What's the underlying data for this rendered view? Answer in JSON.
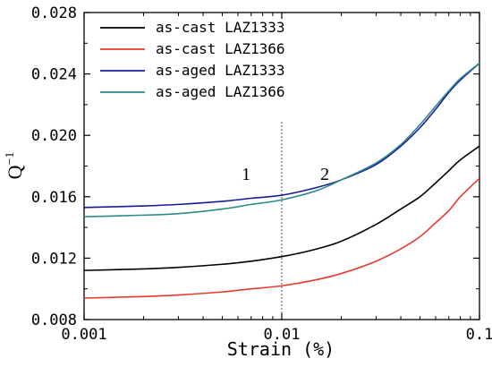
{
  "chart_data": {
    "type": "line",
    "xscale": "log",
    "xlabel": "Strain (%)",
    "ylabel": {
      "base": "Q",
      "sup": "−1"
    },
    "xlim": [
      0.001,
      0.1
    ],
    "ylim": [
      0.008,
      0.028
    ],
    "xticks": [
      {
        "value": 0.001,
        "label": "0.001"
      },
      {
        "value": 0.01,
        "label": "0.01"
      },
      {
        "value": 0.1,
        "label": "0.1"
      }
    ],
    "yticks": [
      {
        "value": 0.008,
        "label": "0.008"
      },
      {
        "value": 0.012,
        "label": "0.012"
      },
      {
        "value": 0.016,
        "label": "0.016"
      },
      {
        "value": 0.02,
        "label": "0.020"
      },
      {
        "value": 0.024,
        "label": "0.024"
      },
      {
        "value": 0.028,
        "label": "0.028"
      }
    ],
    "divider": {
      "x": 0.01,
      "style": "dotted"
    },
    "regions": [
      {
        "label": "1",
        "x": 0.0066,
        "y": 0.0175
      },
      {
        "label": "2",
        "x": 0.0165,
        "y": 0.0175
      }
    ],
    "legend": {
      "position": "top-left"
    },
    "grid": false,
    "series": [
      {
        "name": "as-cast LAZ1333",
        "color": "#000000",
        "x": [
          0.001,
          0.002,
          0.003,
          0.005,
          0.007,
          0.01,
          0.012,
          0.015,
          0.02,
          0.03,
          0.04,
          0.05,
          0.06,
          0.07,
          0.08,
          0.1
        ],
        "y": [
          0.0112,
          0.0113,
          0.0114,
          0.0116,
          0.0118,
          0.0121,
          0.0123,
          0.0126,
          0.0131,
          0.0142,
          0.0152,
          0.016,
          0.0169,
          0.0177,
          0.0184,
          0.0193
        ]
      },
      {
        "name": "as-cast LAZ1366",
        "color": "#e83a2e",
        "x": [
          0.001,
          0.002,
          0.003,
          0.005,
          0.007,
          0.01,
          0.015,
          0.02,
          0.03,
          0.04,
          0.05,
          0.06,
          0.07,
          0.08,
          0.1
        ],
        "y": [
          0.0094,
          0.0095,
          0.0096,
          0.0098,
          0.01,
          0.0102,
          0.0106,
          0.011,
          0.0118,
          0.0126,
          0.0134,
          0.0143,
          0.0151,
          0.016,
          0.0172
        ]
      },
      {
        "name": "as-aged LAZ1333",
        "color": "#1a1a9a",
        "x": [
          0.001,
          0.002,
          0.003,
          0.005,
          0.007,
          0.01,
          0.015,
          0.02,
          0.03,
          0.04,
          0.05,
          0.06,
          0.07,
          0.08,
          0.1
        ],
        "y": [
          0.0153,
          0.0154,
          0.0155,
          0.0157,
          0.0159,
          0.0161,
          0.0166,
          0.0171,
          0.0181,
          0.0193,
          0.0205,
          0.0217,
          0.0228,
          0.0236,
          0.0247
        ]
      },
      {
        "name": "as-aged LAZ1366",
        "color": "#2e8b8b",
        "x": [
          0.001,
          0.002,
          0.003,
          0.005,
          0.007,
          0.01,
          0.015,
          0.02,
          0.03,
          0.04,
          0.05,
          0.06,
          0.07,
          0.08,
          0.1
        ],
        "y": [
          0.0147,
          0.0148,
          0.0149,
          0.0152,
          0.0155,
          0.0158,
          0.0164,
          0.0171,
          0.0182,
          0.0194,
          0.0207,
          0.0219,
          0.0229,
          0.0237,
          0.0247
        ]
      }
    ]
  }
}
